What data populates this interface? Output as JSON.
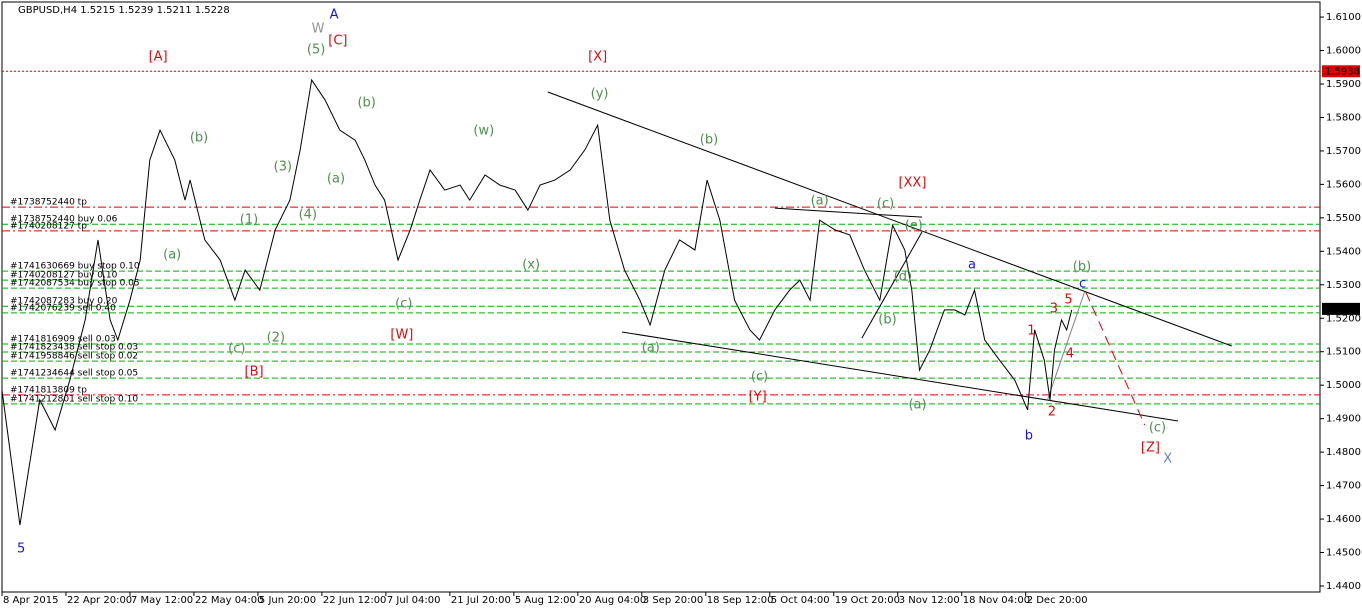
{
  "chart_data": {
    "type": "line",
    "title": "GBPUSD,H4  1.5215 1.5239 1.5211 1.5228",
    "xlim": [
      0,
      206
    ],
    "ylim": [
      1.4382,
      1.6145
    ],
    "xticks": [
      {
        "value": 0,
        "label": "8 Apr 2015"
      },
      {
        "value": 10,
        "label": "22 Apr 20:00"
      },
      {
        "value": 20,
        "label": "7 May 12:00"
      },
      {
        "value": 30,
        "label": "22 May 04:00"
      },
      {
        "value": 40,
        "label": "5 Jun 20:00"
      },
      {
        "value": 50,
        "label": "22 Jun 12:00"
      },
      {
        "value": 60,
        "label": "7 Jul 04:00"
      },
      {
        "value": 70,
        "label": "21 Jul 20:00"
      },
      {
        "value": 80,
        "label": "5 Aug 12:00"
      },
      {
        "value": 90,
        "label": "20 Aug 04:00"
      },
      {
        "value": 100,
        "label": "3 Sep 20:00"
      },
      {
        "value": 110,
        "label": "18 Sep 12:00"
      },
      {
        "value": 120,
        "label": "5 Oct 04:00"
      },
      {
        "value": 130,
        "label": "19 Oct 20:00"
      },
      {
        "value": 140,
        "label": "3 Nov 12:00"
      },
      {
        "value": 150,
        "label": "18 Nov 04:00"
      },
      {
        "value": 160,
        "label": "2 Dec 20:00"
      }
    ],
    "yticks": [
      {
        "value": 1.61,
        "label": "1.6100"
      },
      {
        "value": 1.6,
        "label": "1.6000"
      },
      {
        "value": 1.59,
        "label": "1.5900"
      },
      {
        "value": 1.58,
        "label": "1.5800"
      },
      {
        "value": 1.57,
        "label": "1.5700"
      },
      {
        "value": 1.56,
        "label": "1.5600"
      },
      {
        "value": 1.55,
        "label": "1.5500"
      },
      {
        "value": 1.54,
        "label": "1.5400"
      },
      {
        "value": 1.53,
        "label": "1.5300"
      },
      {
        "value": 1.52,
        "label": "1.5200"
      },
      {
        "value": 1.51,
        "label": "1.5100"
      },
      {
        "value": 1.5,
        "label": "1.5000"
      },
      {
        "value": 1.49,
        "label": "1.4900"
      },
      {
        "value": 1.48,
        "label": "1.4800"
      },
      {
        "value": 1.47,
        "label": "1.4700"
      },
      {
        "value": 1.46,
        "label": "1.4600"
      },
      {
        "value": 1.45,
        "label": "1.4500"
      },
      {
        "value": 1.44,
        "label": "1.4400"
      }
    ],
    "series": [
      {
        "name": "GBPUSD",
        "color": "#000000",
        "x": [
          0,
          2.8,
          5.9,
          8.3,
          10.6,
          13,
          15,
          16.9,
          18.1,
          20,
          21.6,
          23.1,
          24.7,
          27,
          28.6,
          29.4,
          31.7,
          34.1,
          36.4,
          38,
          40.3,
          42.7,
          45,
          46.6,
          48.4,
          50.5,
          52.8,
          55.2,
          56.7,
          58.3,
          59.8,
          61.9,
          63.8,
          65.3,
          66.9,
          69.2,
          71.6,
          73.1,
          75.5,
          77.8,
          80.2,
          82.2,
          84.1,
          86.4,
          88.8,
          91.1,
          93.1,
          95,
          97.3,
          99.7,
          101.3,
          103.6,
          105.9,
          108.3,
          110.2,
          112.2,
          114.5,
          116.9,
          118.4,
          120.8,
          123.1,
          124.7,
          126.3,
          127.8,
          130.2,
          132.5,
          134.8,
          137.2,
          139.2,
          141.1,
          142.2,
          143.4,
          145,
          147.3,
          148.9,
          150.5,
          152,
          153.6,
          155.9,
          158.3,
          160.3,
          161.4,
          162.9,
          163.8,
          164.5,
          165.6,
          166.4,
          167.2
        ],
        "values": [
          1.4985,
          1.4582,
          1.4956,
          1.4866,
          1.5015,
          1.5195,
          1.5434,
          1.5195,
          1.5135,
          1.5254,
          1.5374,
          1.5673,
          1.5762,
          1.5673,
          1.5553,
          1.5613,
          1.5434,
          1.5374,
          1.5254,
          1.5344,
          1.5284,
          1.5464,
          1.5553,
          1.5703,
          1.5912,
          1.5852,
          1.5762,
          1.5732,
          1.5673,
          1.5598,
          1.5553,
          1.5374,
          1.5464,
          1.5553,
          1.5643,
          1.5583,
          1.5598,
          1.5553,
          1.5628,
          1.5598,
          1.5583,
          1.5523,
          1.5598,
          1.5613,
          1.5643,
          1.5703,
          1.5777,
          1.5493,
          1.5344,
          1.5254,
          1.518,
          1.5344,
          1.5434,
          1.5404,
          1.5613,
          1.5493,
          1.5254,
          1.5165,
          1.5135,
          1.5225,
          1.5284,
          1.5314,
          1.5254,
          1.5493,
          1.5464,
          1.5449,
          1.5344,
          1.5254,
          1.5478,
          1.5404,
          1.5284,
          1.5045,
          1.5105,
          1.5225,
          1.5225,
          1.521,
          1.5284,
          1.5135,
          1.5075,
          1.5015,
          1.4926,
          1.5165,
          1.5075,
          1.4956,
          1.5105,
          1.5195,
          1.5165,
          1.5225
        ]
      }
    ],
    "levels": [
      {
        "price": 1.5938,
        "color": "#e00000",
        "style": "dotted"
      },
      {
        "price": 1.5532,
        "color": "#e00000",
        "style": "dashdot",
        "label": "#1738752440 tp"
      },
      {
        "price": 1.5481,
        "color": "#00b000",
        "style": "dashed",
        "label": "#1738752440 buy 0.06"
      },
      {
        "price": 1.5461,
        "color": "#e00000",
        "style": "dashdot",
        "label": "#1740208127 tp"
      },
      {
        "price": 1.5341,
        "color": "#00b000",
        "style": "dashed",
        "label": "#1741630669 buy stop 0.10"
      },
      {
        "price": 1.5314,
        "color": "#00b000",
        "style": "dashed",
        "label": "#1740208127 buy 0.10"
      },
      {
        "price": 1.529,
        "color": "#00b000",
        "style": "dashed",
        "label": "#1742087534 buy stop 0.05"
      },
      {
        "price": 1.5236,
        "color": "#00b000",
        "style": "dashed",
        "label": "#1742087283 buy 0.20"
      },
      {
        "price": 1.5216,
        "color": "#00b000",
        "style": "dashed",
        "label": "#1742076239 sell 0.40"
      },
      {
        "price": 1.5123,
        "color": "#00b000",
        "style": "dashed",
        "label": "#1741816909 sell 0.03"
      },
      {
        "price": 1.5099,
        "color": "#00b000",
        "style": "dashed",
        "label": "#1741823438 sell stop 0.03"
      },
      {
        "price": 1.5072,
        "color": "#00b000",
        "style": "dashed",
        "label": "#1741958846 sell stop 0.02"
      },
      {
        "price": 1.5021,
        "color": "#00b000",
        "style": "dashed",
        "label": "#1741234644 sell stop 0.05"
      },
      {
        "price": 1.4971,
        "color": "#e00000",
        "style": "dashdot",
        "label": "#1741813809 tp"
      },
      {
        "price": 1.4944,
        "color": "#00b000",
        "style": "dashed",
        "label": "#1741212801 sell stop 0.10"
      }
    ],
    "price_tags": [
      {
        "price": 1.5938,
        "color": "#e00000"
      },
      {
        "price": 1.5228,
        "color": "#000000"
      }
    ],
    "lines": [
      {
        "x1": 85.3,
        "y1": 1.5876,
        "x2": 192.2,
        "y2": 1.5117,
        "color": "#000000"
      },
      {
        "x1": 96.9,
        "y1": 1.5159,
        "x2": 183.8,
        "y2": 1.4893,
        "color": "#000000"
      },
      {
        "x1": 120.8,
        "y1": 1.5529,
        "x2": 143.8,
        "y2": 1.5502,
        "color": "#000000"
      },
      {
        "x1": 134.4,
        "y1": 1.5141,
        "x2": 143.8,
        "y2": 1.5458,
        "color": "#000000"
      },
      {
        "x1": 163.4,
        "y1": 1.4956,
        "x2": 169.2,
        "y2": 1.5278,
        "color": "#808080"
      },
      {
        "x1": 169.4,
        "y1": 1.5278,
        "x2": 178.6,
        "y2": 1.4881,
        "color": "#e00000",
        "dash": true
      }
    ],
    "annotations": [
      {
        "text": "A",
        "color": "#1a1acc",
        "x": 51.9,
        "y": 1.6106
      },
      {
        "text": "W",
        "color": "#909090",
        "x": 49.4,
        "y": 1.6064
      },
      {
        "text": "(5)",
        "color": "#4f8f4f",
        "x": 49.1,
        "y": 1.6001
      },
      {
        "text": "[C]",
        "color": "#d01010",
        "x": 52.5,
        "y": 1.6028
      },
      {
        "text": "[A]",
        "color": "#d01010",
        "x": 24.4,
        "y": 1.598
      },
      {
        "text": "[X]",
        "color": "#d01010",
        "x": 93.1,
        "y": 1.598
      },
      {
        "text": "(y)",
        "color": "#4f8f4f",
        "x": 93.4,
        "y": 1.587
      },
      {
        "text": "(b)",
        "color": "#4f8f4f",
        "x": 57.0,
        "y": 1.5843
      },
      {
        "text": "(b)",
        "color": "#4f8f4f",
        "x": 30.8,
        "y": 1.5738
      },
      {
        "text": "(w)",
        "color": "#4f8f4f",
        "x": 75.3,
        "y": 1.5759
      },
      {
        "text": "(b)",
        "color": "#4f8f4f",
        "x": 110.5,
        "y": 1.5732
      },
      {
        "text": "(3)",
        "color": "#4f8f4f",
        "x": 43.9,
        "y": 1.5652
      },
      {
        "text": "(a)",
        "color": "#4f8f4f",
        "x": 52.2,
        "y": 1.5616
      },
      {
        "text": "[XX]",
        "color": "#d01010",
        "x": 142.3,
        "y": 1.5604
      },
      {
        "text": "(a)",
        "color": "#4f8f4f",
        "x": 127.8,
        "y": 1.555
      },
      {
        "text": "(c)",
        "color": "#4f8f4f",
        "x": 138.1,
        "y": 1.5541
      },
      {
        "text": "(1)",
        "color": "#4f8f4f",
        "x": 38.6,
        "y": 1.5493
      },
      {
        "text": "(4)",
        "color": "#4f8f4f",
        "x": 47.8,
        "y": 1.5508
      },
      {
        "text": "(e)",
        "color": "#4f8f4f",
        "x": 142.5,
        "y": 1.5476
      },
      {
        "text": "(a)",
        "color": "#4f8f4f",
        "x": 26.6,
        "y": 1.5389
      },
      {
        "text": "(x)",
        "color": "#4f8f4f",
        "x": 82.7,
        "y": 1.5359
      },
      {
        "text": "a",
        "color": "#1a1acc",
        "x": 151.6,
        "y": 1.5359
      },
      {
        "text": "(b)",
        "color": "#4f8f4f",
        "x": 168.8,
        "y": 1.5353
      },
      {
        "text": "c",
        "color": "#1a1acc",
        "x": 168.9,
        "y": 1.5302
      },
      {
        "text": "(d)",
        "color": "#4f8f4f",
        "x": 140.8,
        "y": 1.5323
      },
      {
        "text": "5",
        "color": "#d01010",
        "x": 166.7,
        "y": 1.5254
      },
      {
        "text": "3",
        "color": "#d01010",
        "x": 164.4,
        "y": 1.5228
      },
      {
        "text": "(c)",
        "color": "#4f8f4f",
        "x": 62.8,
        "y": 1.5242
      },
      {
        "text": "(b)",
        "color": "#4f8f4f",
        "x": 138.4,
        "y": 1.5195
      },
      {
        "text": "1",
        "color": "#d01010",
        "x": 160.9,
        "y": 1.5162
      },
      {
        "text": "[W]",
        "color": "#d01010",
        "x": 62.5,
        "y": 1.515
      },
      {
        "text": "(2)",
        "color": "#4f8f4f",
        "x": 42.8,
        "y": 1.5141
      },
      {
        "text": "(c)",
        "color": "#4f8f4f",
        "x": 36.7,
        "y": 1.5108
      },
      {
        "text": "(a)",
        "color": "#4f8f4f",
        "x": 101.4,
        "y": 1.5111
      },
      {
        "text": "4",
        "color": "#d01010",
        "x": 166.9,
        "y": 1.5093
      },
      {
        "text": "[B]",
        "color": "#d01010",
        "x": 39.4,
        "y": 1.5039
      },
      {
        "text": "(c)",
        "color": "#4f8f4f",
        "x": 118.4,
        "y": 1.5024
      },
      {
        "text": "[Y]",
        "color": "#d01010",
        "x": 118.1,
        "y": 1.4965
      },
      {
        "text": "(a)",
        "color": "#4f8f4f",
        "x": 143.1,
        "y": 1.4941
      },
      {
        "text": "2",
        "color": "#d01010",
        "x": 164.1,
        "y": 1.492
      },
      {
        "text": "b",
        "color": "#1a1acc",
        "x": 160.5,
        "y": 1.4848
      },
      {
        "text": "(c)",
        "color": "#4f8f4f",
        "x": 180.6,
        "y": 1.4872
      },
      {
        "text": "[Z]",
        "color": "#d01010",
        "x": 179.5,
        "y": 1.4812
      },
      {
        "text": "X",
        "color": "#7080c0",
        "x": 182.2,
        "y": 1.4779
      },
      {
        "text": "5",
        "color": "#1a1acc",
        "x": 3.0,
        "y": 1.451
      }
    ]
  }
}
